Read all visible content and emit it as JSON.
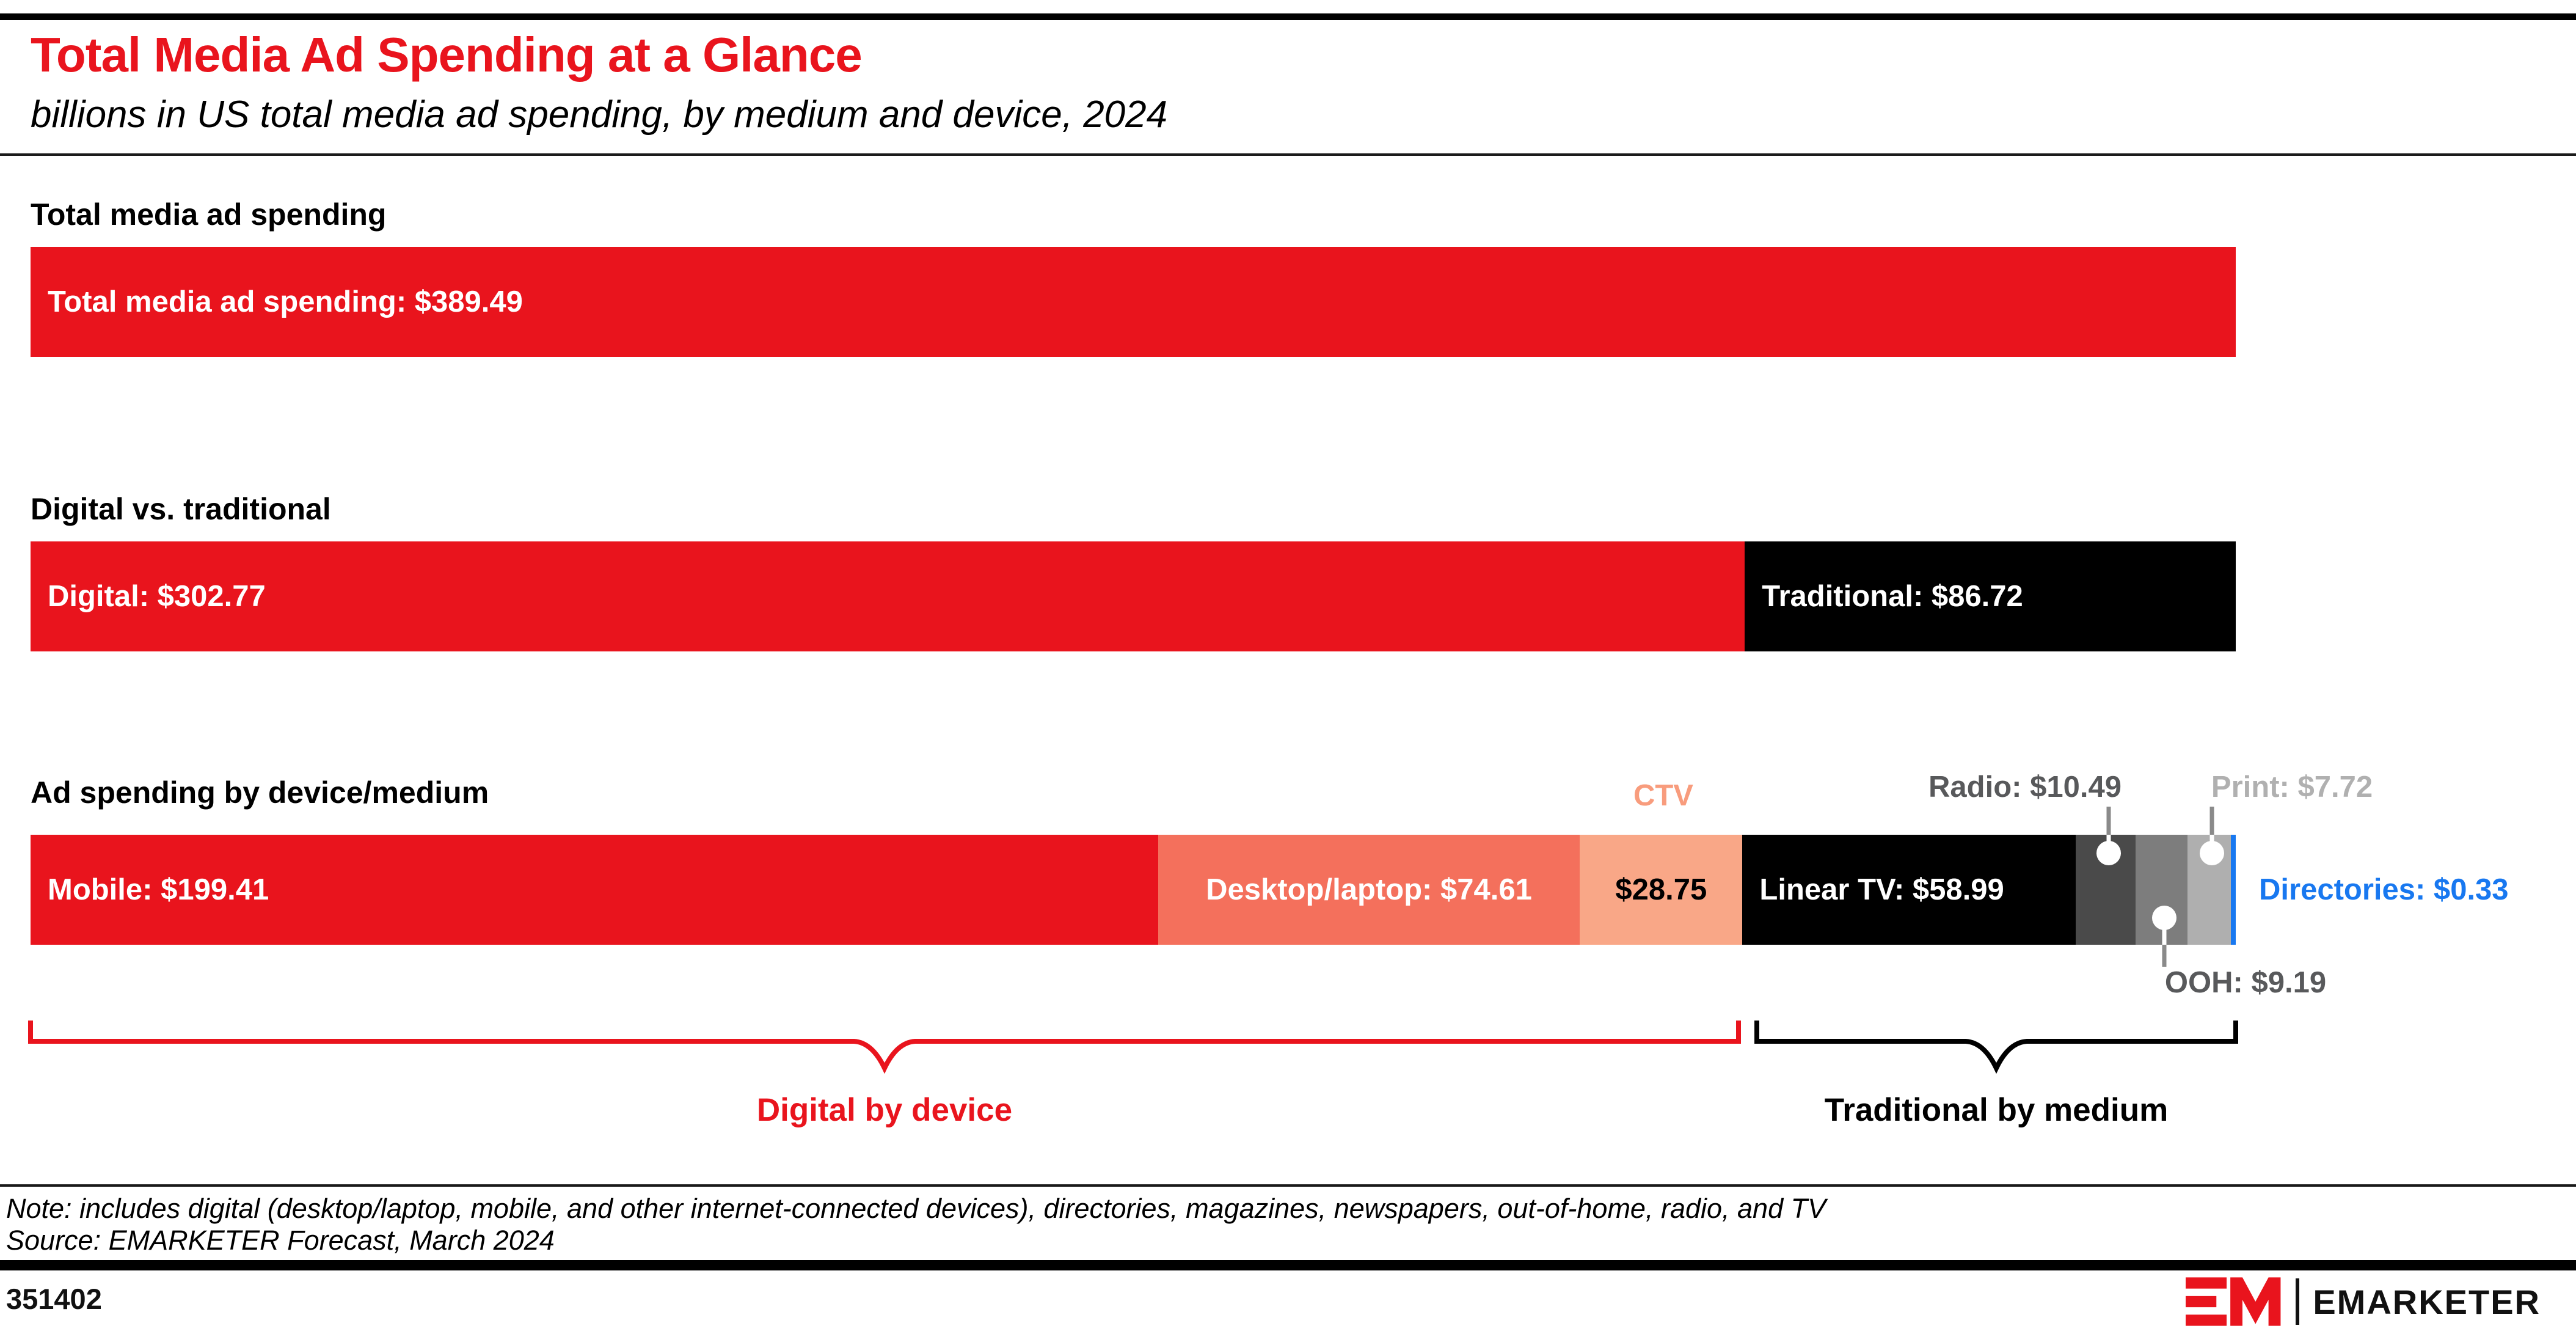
{
  "header": {
    "title": "Total Media Ad Spending at a Glance",
    "subtitle": "billions in US total media ad spending, by medium and device, 2024"
  },
  "sections": [
    {
      "heading": "Total media ad spending"
    },
    {
      "heading": "Digital vs. traditional"
    },
    {
      "heading": "Ad spending by device/medium"
    }
  ],
  "chart_data": {
    "type": "bar",
    "orientation": "horizontal-stacked",
    "title": "Total Media Ad Spending at a Glance",
    "subtitle": "billions in US total media ad spending, by medium and device, 2024",
    "unit": "USD billions",
    "total": 389.49,
    "rows": [
      {
        "name": "Total media ad spending",
        "segments": [
          {
            "label": "Total media ad spending",
            "value": 389.49,
            "color": "#E9141D"
          }
        ]
      },
      {
        "name": "Digital vs. traditional",
        "segments": [
          {
            "label": "Digital",
            "value": 302.77,
            "color": "#E9141D"
          },
          {
            "label": "Traditional",
            "value": 86.72,
            "color": "#000000"
          }
        ]
      },
      {
        "name": "Ad spending by device/medium",
        "segments": [
          {
            "label": "Mobile",
            "value": 199.41,
            "color": "#E9141D"
          },
          {
            "label": "Desktop/laptop",
            "value": 74.61,
            "color": "#F4705C"
          },
          {
            "label": "CTV",
            "value": 28.75,
            "color": "#F9A787"
          },
          {
            "label": "Linear TV",
            "value": 58.99,
            "color": "#000000"
          },
          {
            "label": "Radio",
            "value": 10.49,
            "color": "#4A4A4A"
          },
          {
            "label": "OOH",
            "value": 9.19,
            "color": "#7D7D7D"
          },
          {
            "label": "Print",
            "value": 7.72,
            "color": "#AFAFAF"
          },
          {
            "label": "Directories",
            "value": 0.33,
            "color": "#1878F0"
          }
        ]
      }
    ]
  },
  "bars": {
    "row1": {
      "text": "Total media ad spending: $389.49"
    },
    "row2": {
      "digital": "Digital: $302.77",
      "traditional": "Traditional: $86.72"
    },
    "row3": {
      "mobile": "Mobile: $199.41",
      "desktop": "Desktop/laptop: $74.61",
      "ctv_label": "CTV",
      "ctv_value": "$28.75",
      "linear_tv": "Linear TV: $58.99",
      "radio": "Radio: $10.49",
      "ooh": "OOH: $9.19",
      "print": "Print: $7.72",
      "directories": "Directories: $0.33"
    }
  },
  "braces": {
    "digital": "Digital by device",
    "traditional": "Traditional by medium"
  },
  "footer": {
    "note": "Note: includes digital (desktop/laptop, mobile, and other internet-connected devices), directories, magazines, newspapers, out-of-home, radio, and TV",
    "source": "Source: EMARKETER Forecast, March 2024",
    "chart_id": "351402",
    "brand": "EMARKETER"
  },
  "colors": {
    "red": "#E9141D",
    "desktop_salmon": "#F4705C",
    "ctv_peach": "#F9A787",
    "ctv_label": "#F89C7D",
    "radio_gray": "#4A4A4A",
    "ooh_gray": "#7D7D7D",
    "print_gray": "#AFAFAF",
    "directories_blue": "#1878F0",
    "label_gray": "#58595B",
    "print_label_gray": "#B0B0B0",
    "stem_gray": "#8A8A8A"
  }
}
